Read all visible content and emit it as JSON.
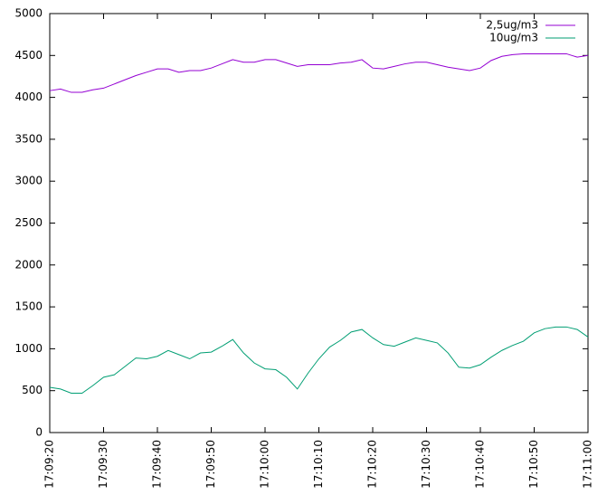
{
  "chart_data": {
    "type": "line",
    "x": [
      "17:09:20",
      "17:09:22",
      "17:09:24",
      "17:09:26",
      "17:09:28",
      "17:09:30",
      "17:09:32",
      "17:09:34",
      "17:09:36",
      "17:09:38",
      "17:09:40",
      "17:09:42",
      "17:09:44",
      "17:09:46",
      "17:09:48",
      "17:09:50",
      "17:09:52",
      "17:09:54",
      "17:09:56",
      "17:09:58",
      "17:10:00",
      "17:10:02",
      "17:10:04",
      "17:10:06",
      "17:10:08",
      "17:10:10",
      "17:10:12",
      "17:10:14",
      "17:10:16",
      "17:10:18",
      "17:10:20",
      "17:10:22",
      "17:10:24",
      "17:10:26",
      "17:10:28",
      "17:10:30",
      "17:10:32",
      "17:10:34",
      "17:10:36",
      "17:10:38",
      "17:10:40",
      "17:10:42",
      "17:10:44",
      "17:10:46",
      "17:10:48",
      "17:10:50",
      "17:10:52",
      "17:10:54",
      "17:10:56",
      "17:10:58",
      "17:11:00"
    ],
    "series": [
      {
        "name": "2,5ug/m3",
        "color": "#9400d3",
        "values": [
          4080,
          4100,
          4060,
          4060,
          4090,
          4110,
          4160,
          4210,
          4260,
          4300,
          4340,
          4340,
          4300,
          4320,
          4320,
          4350,
          4400,
          4450,
          4420,
          4420,
          4450,
          4450,
          4410,
          4370,
          4390,
          4390,
          4390,
          4410,
          4420,
          4450,
          4350,
          4340,
          4370,
          4400,
          4420,
          4420,
          4390,
          4360,
          4340,
          4320,
          4350,
          4440,
          4490,
          4510,
          4520,
          4520,
          4520,
          4520,
          4520,
          4480,
          4500
        ]
      },
      {
        "name": "10ug/m3",
        "color": "#009e73",
        "values": [
          540,
          520,
          470,
          470,
          560,
          660,
          690,
          790,
          890,
          880,
          910,
          980,
          930,
          880,
          950,
          960,
          1030,
          1110,
          950,
          830,
          760,
          750,
          660,
          520,
          710,
          880,
          1020,
          1100,
          1200,
          1230,
          1130,
          1050,
          1030,
          1080,
          1130,
          1100,
          1070,
          950,
          780,
          770,
          810,
          900,
          980,
          1040,
          1090,
          1190,
          1240,
          1260,
          1260,
          1230,
          1140
        ]
      }
    ],
    "xlim": [
      "17:09:20",
      "17:11:00"
    ],
    "xticks": [
      "17:09:20",
      "17:09:30",
      "17:09:40",
      "17:09:50",
      "17:10:00",
      "17:10:10",
      "17:10:20",
      "17:10:30",
      "17:10:40",
      "17:10:50",
      "17:11:00"
    ],
    "ylim": [
      0,
      5000
    ],
    "yticks": [
      0,
      500,
      1000,
      1500,
      2000,
      2500,
      3000,
      3500,
      4000,
      4500,
      5000
    ],
    "legend": "top-right"
  }
}
